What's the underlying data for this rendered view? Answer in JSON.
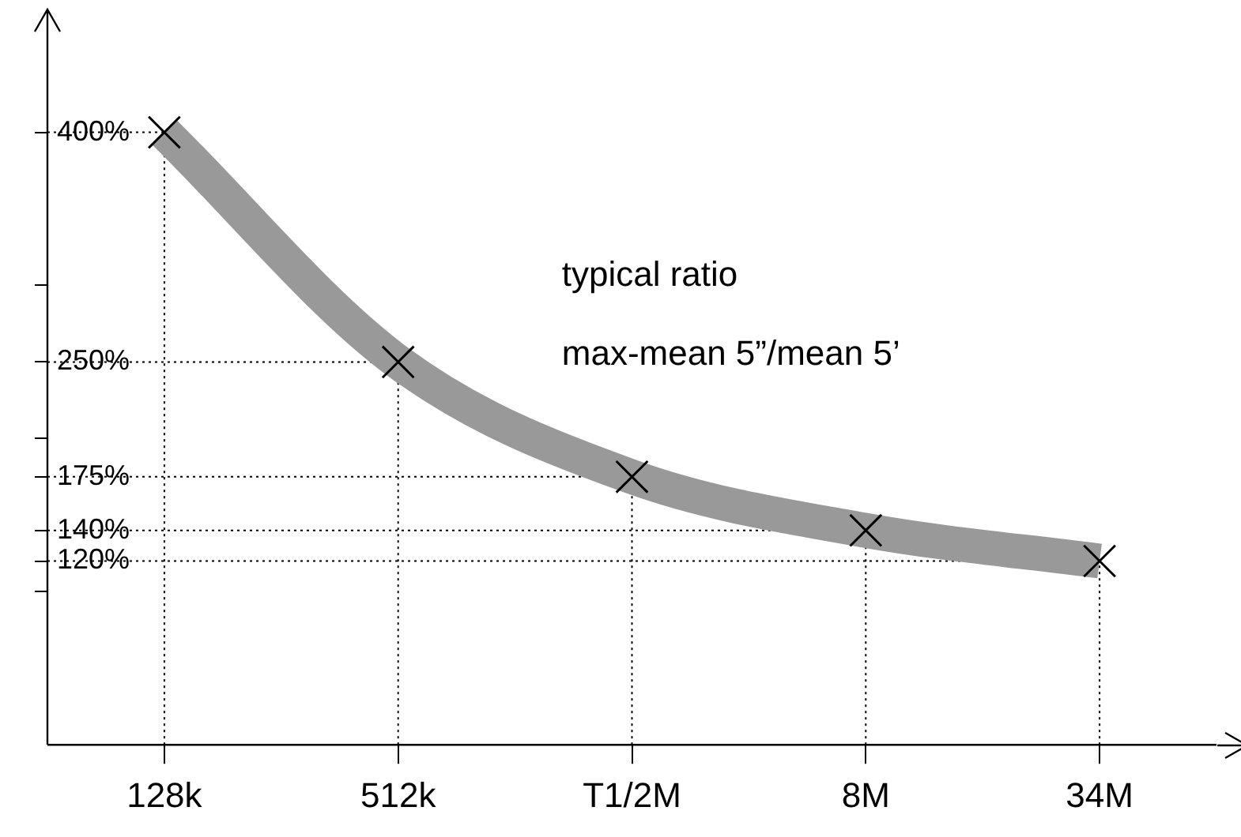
{
  "chart_data": {
    "type": "line",
    "categories": [
      "128k",
      "512k",
      "T1/2M",
      "8M",
      "34M"
    ],
    "series": [
      {
        "color": "#999999",
        "values": [
          400,
          250,
          175,
          140,
          120
        ]
      }
    ],
    "ylim": [
      0,
      440
    ],
    "yticks": [
      {
        "value": 100,
        "label": null
      },
      {
        "value": 120,
        "label": "120%"
      },
      {
        "value": 140,
        "label": "140%"
      },
      {
        "value": 175,
        "label": "175%"
      },
      {
        "value": 200,
        "label": null
      },
      {
        "value": 250,
        "label": "250%"
      },
      {
        "value": 300,
        "label": null
      },
      {
        "value": 400,
        "label": "400%"
      }
    ],
    "marker": "cross",
    "ref_lines": [
      {
        "axis": "y",
        "value": 400,
        "color": "#000000",
        "line_style": "dotted"
      },
      {
        "axis": "y",
        "value": 250,
        "color": "#000000",
        "line_style": "dotted"
      },
      {
        "axis": "y",
        "value": 175,
        "color": "#000000",
        "line_style": "dotted"
      },
      {
        "axis": "y",
        "value": 140,
        "color": "#000000",
        "line_style": "dotted"
      },
      {
        "axis": "y",
        "value": 120,
        "color": "#000000",
        "line_style": "dotted"
      },
      {
        "axis": "x",
        "value": "128k",
        "color": "#000000",
        "line_style": "dotted"
      },
      {
        "axis": "x",
        "value": "512k",
        "color": "#000000",
        "line_style": "dotted"
      },
      {
        "axis": "x",
        "value": "T1/2M",
        "color": "#000000",
        "line_style": "dotted"
      },
      {
        "axis": "x",
        "value": "8M",
        "color": "#000000",
        "line_style": "dotted"
      },
      {
        "axis": "x",
        "value": "34M",
        "color": "#000000",
        "line_style": "dotted"
      }
    ],
    "legend": false,
    "annotations": [
      "typical ratio",
      "max-mean 5”/mean 5’"
    ]
  }
}
